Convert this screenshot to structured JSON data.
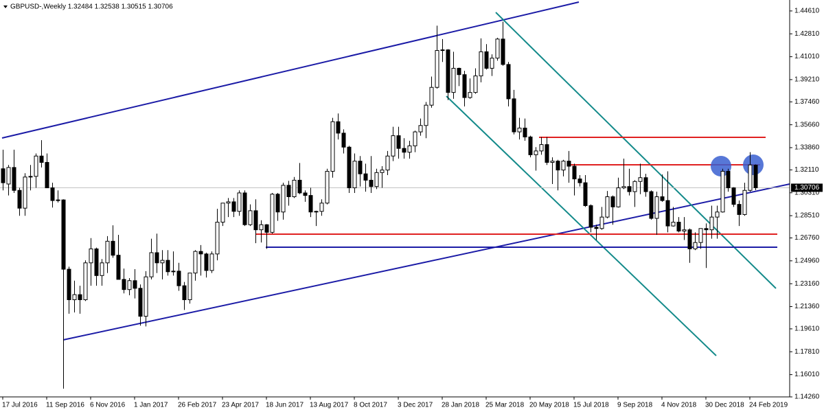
{
  "chart_data": {
    "type": "candlestick",
    "title": "GBPUSD-,Weekly  1.32484 1.32538 1.30515 1.30706",
    "up_color": "#ffffff",
    "down_color": "#000000",
    "edge_color": "#000000",
    "xlim": [
      -0.5,
      143.25
    ],
    "ylim": [
      1.1426,
      1.4547
    ],
    "current_price": {
      "value": 1.30706,
      "label": "1.30706"
    },
    "xticks": [
      {
        "value": 0,
        "label": "17 Jul 2016"
      },
      {
        "value": 8,
        "label": "11 Sep 2016"
      },
      {
        "value": 16,
        "label": "6 Nov 2016"
      },
      {
        "value": 24,
        "label": "1 Jan 2017"
      },
      {
        "value": 32,
        "label": "26 Feb 2017"
      },
      {
        "value": 40,
        "label": "23 Apr 2017"
      },
      {
        "value": 48,
        "label": "18 Jun 2017"
      },
      {
        "value": 56,
        "label": "13 Aug 2017"
      },
      {
        "value": 64,
        "label": "8 Oct 2017"
      },
      {
        "value": 72,
        "label": "3 Dec 2017"
      },
      {
        "value": 80,
        "label": "28 Jan 2018"
      },
      {
        "value": 88,
        "label": "25 Mar 2018"
      },
      {
        "value": 96,
        "label": "20 May 2018"
      },
      {
        "value": 104,
        "label": "15 Jul 2018"
      },
      {
        "value": 112,
        "label": "9 Sep 2018"
      },
      {
        "value": 120,
        "label": "4 Nov 2018"
      },
      {
        "value": 128,
        "label": "30 Dec 2018"
      },
      {
        "value": 136,
        "label": "24 Feb 2019"
      }
    ],
    "yticks": [
      {
        "value": 1.4461,
        "label": "1.44610"
      },
      {
        "value": 1.4281,
        "label": "1.42810"
      },
      {
        "value": 1.4101,
        "label": "1.41010"
      },
      {
        "value": 1.3921,
        "label": "1.39210"
      },
      {
        "value": 1.3746,
        "label": "1.37460"
      },
      {
        "value": 1.3566,
        "label": "1.35660"
      },
      {
        "value": 1.3386,
        "label": "1.33860"
      },
      {
        "value": 1.3211,
        "label": "1.32110"
      },
      {
        "value": 1.3031,
        "label": "1.30310"
      },
      {
        "value": 1.2851,
        "label": "1.28510"
      },
      {
        "value": 1.2676,
        "label": "1.26760"
      },
      {
        "value": 1.2496,
        "label": "1.24960"
      },
      {
        "value": 1.2316,
        "label": "1.23160"
      },
      {
        "value": 1.2136,
        "label": "1.21360"
      },
      {
        "value": 1.1961,
        "label": "1.19610"
      },
      {
        "value": 1.1781,
        "label": "1.17810"
      },
      {
        "value": 1.1601,
        "label": "1.16010"
      },
      {
        "value": 1.1426,
        "label": "1.14260"
      }
    ],
    "ohlc": [
      [
        1.322,
        1.337,
        1.305,
        1.311
      ],
      [
        1.31,
        1.325,
        1.301,
        1.323
      ],
      [
        1.323,
        1.337,
        1.303,
        1.305
      ],
      [
        1.305,
        1.307,
        1.285,
        1.291
      ],
      [
        1.291,
        1.3185,
        1.285,
        1.3155
      ],
      [
        1.3155,
        1.325,
        1.305,
        1.316
      ],
      [
        1.316,
        1.334,
        1.307,
        1.332
      ],
      [
        1.332,
        1.3445,
        1.323,
        1.327
      ],
      [
        1.327,
        1.334,
        1.309,
        1.307
      ],
      [
        1.307,
        1.311,
        1.2915,
        1.297
      ],
      [
        1.297,
        1.305,
        1.2955,
        1.2975
      ],
      [
        1.2975,
        1.298,
        1.1491,
        1.243
      ],
      [
        1.243,
        1.245,
        1.208,
        1.219
      ],
      [
        1.219,
        1.234,
        1.209,
        1.223
      ],
      [
        1.223,
        1.23,
        1.208,
        1.219
      ],
      [
        1.219,
        1.25,
        1.218,
        1.248
      ],
      [
        1.248,
        1.2675,
        1.23,
        1.259
      ],
      [
        1.259,
        1.26,
        1.23,
        1.238
      ],
      [
        1.238,
        1.251,
        1.23,
        1.248
      ],
      [
        1.248,
        1.269,
        1.24,
        1.265
      ],
      [
        1.265,
        1.2775,
        1.252,
        1.254
      ],
      [
        1.254,
        1.27,
        1.235,
        1.235
      ],
      [
        1.235,
        1.2435,
        1.224,
        1.227
      ],
      [
        1.227,
        1.236,
        1.2225,
        1.234
      ],
      [
        1.234,
        1.243,
        1.22,
        1.228
      ],
      [
        1.228,
        1.231,
        1.1986,
        1.206
      ],
      [
        1.206,
        1.2415,
        1.198,
        1.237
      ],
      [
        1.237,
        1.267,
        1.235,
        1.256
      ],
      [
        1.256,
        1.271,
        1.24,
        1.248
      ],
      [
        1.248,
        1.258,
        1.235,
        1.25
      ],
      [
        1.25,
        1.258,
        1.238,
        1.241
      ],
      [
        1.241,
        1.257,
        1.238,
        1.2415
      ],
      [
        1.2415,
        1.248,
        1.226,
        1.23
      ],
      [
        1.23,
        1.233,
        1.211,
        1.219
      ],
      [
        1.219,
        1.24,
        1.216,
        1.24
      ],
      [
        1.24,
        1.258,
        1.234,
        1.257
      ],
      [
        1.257,
        1.262,
        1.238,
        1.255
      ],
      [
        1.255,
        1.256,
        1.2365,
        1.242
      ],
      [
        1.242,
        1.257,
        1.24,
        1.255
      ],
      [
        1.255,
        1.2905,
        1.25,
        1.28
      ],
      [
        1.28,
        1.295,
        1.277,
        1.295
      ],
      [
        1.295,
        1.299,
        1.284,
        1.296
      ],
      [
        1.296,
        1.299,
        1.284,
        1.2885
      ],
      [
        1.2885,
        1.305,
        1.285,
        1.303
      ],
      [
        1.303,
        1.305,
        1.277,
        1.278
      ],
      [
        1.278,
        1.294,
        1.277,
        1.289
      ],
      [
        1.289,
        1.298,
        1.2635,
        1.274
      ],
      [
        1.274,
        1.2815,
        1.264,
        1.278
      ],
      [
        1.278,
        1.2785,
        1.259,
        1.272
      ],
      [
        1.272,
        1.303,
        1.271,
        1.302
      ],
      [
        1.302,
        1.303,
        1.281,
        1.288
      ],
      [
        1.288,
        1.311,
        1.282,
        1.309
      ],
      [
        1.309,
        1.3125,
        1.293,
        1.3
      ],
      [
        1.3,
        1.3155,
        1.299,
        1.313
      ],
      [
        1.313,
        1.3265,
        1.302,
        1.303
      ],
      [
        1.303,
        1.305,
        1.296,
        1.301
      ],
      [
        1.301,
        1.307,
        1.284,
        1.288
      ],
      [
        1.288,
        1.289,
        1.277,
        1.2885
      ],
      [
        1.2885,
        1.298,
        1.285,
        1.295
      ],
      [
        1.295,
        1.322,
        1.294,
        1.32
      ],
      [
        1.32,
        1.362,
        1.315,
        1.359
      ],
      [
        1.359,
        1.3655,
        1.345,
        1.35
      ],
      [
        1.35,
        1.353,
        1.334,
        1.339
      ],
      [
        1.339,
        1.34,
        1.303,
        1.307
      ],
      [
        1.307,
        1.334,
        1.303,
        1.328
      ],
      [
        1.328,
        1.332,
        1.308,
        1.318
      ],
      [
        1.318,
        1.326,
        1.304,
        1.313
      ],
      [
        1.313,
        1.332,
        1.303,
        1.308
      ],
      [
        1.308,
        1.322,
        1.306,
        1.319
      ],
      [
        1.319,
        1.324,
        1.307,
        1.321
      ],
      [
        1.321,
        1.336,
        1.317,
        1.332
      ],
      [
        1.332,
        1.355,
        1.328,
        1.348
      ],
      [
        1.348,
        1.355,
        1.33,
        1.338
      ],
      [
        1.338,
        1.346,
        1.33,
        1.335
      ],
      [
        1.335,
        1.344,
        1.33,
        1.34
      ],
      [
        1.34,
        1.352,
        1.335,
        1.351
      ],
      [
        1.351,
        1.3615,
        1.348,
        1.356
      ],
      [
        1.356,
        1.3745,
        1.346,
        1.372
      ],
      [
        1.372,
        1.3945,
        1.37,
        1.386
      ],
      [
        1.386,
        1.4345,
        1.385,
        1.415
      ],
      [
        1.415,
        1.424,
        1.406,
        1.4155
      ],
      [
        1.4155,
        1.416,
        1.376,
        1.382
      ],
      [
        1.382,
        1.414,
        1.377,
        1.401
      ],
      [
        1.401,
        1.4015,
        1.387,
        1.396
      ],
      [
        1.396,
        1.399,
        1.371,
        1.378
      ],
      [
        1.378,
        1.393,
        1.377,
        1.382
      ],
      [
        1.382,
        1.401,
        1.381,
        1.395
      ],
      [
        1.395,
        1.4245,
        1.39,
        1.414
      ],
      [
        1.414,
        1.42,
        1.4,
        1.401
      ],
      [
        1.401,
        1.412,
        1.395,
        1.409
      ],
      [
        1.409,
        1.425,
        1.407,
        1.424
      ],
      [
        1.424,
        1.4376,
        1.403,
        1.404
      ],
      [
        1.404,
        1.406,
        1.371,
        1.377
      ],
      [
        1.377,
        1.384,
        1.349,
        1.351
      ],
      [
        1.351,
        1.362,
        1.345,
        1.354
      ],
      [
        1.354,
        1.3615,
        1.344,
        1.347
      ],
      [
        1.347,
        1.348,
        1.331,
        1.333
      ],
      [
        1.333,
        1.339,
        1.3205,
        1.336
      ],
      [
        1.336,
        1.347,
        1.333,
        1.341
      ],
      [
        1.341,
        1.347,
        1.325,
        1.327
      ],
      [
        1.327,
        1.331,
        1.31,
        1.328
      ],
      [
        1.328,
        1.329,
        1.305,
        1.321
      ],
      [
        1.321,
        1.329,
        1.316,
        1.328
      ],
      [
        1.328,
        1.336,
        1.311,
        1.324
      ],
      [
        1.324,
        1.326,
        1.301,
        1.314
      ],
      [
        1.314,
        1.317,
        1.308,
        1.311
      ],
      [
        1.311,
        1.317,
        1.292,
        1.293
      ],
      [
        1.293,
        1.294,
        1.272,
        1.276
      ],
      [
        1.276,
        1.278,
        1.266,
        1.275
      ],
      [
        1.275,
        1.292,
        1.274,
        1.284
      ],
      [
        1.284,
        1.3045,
        1.283,
        1.3
      ],
      [
        1.3,
        1.301,
        1.278,
        1.292
      ],
      [
        1.292,
        1.315,
        1.2915,
        1.307
      ],
      [
        1.307,
        1.33,
        1.306,
        1.308
      ],
      [
        1.308,
        1.322,
        1.301,
        1.304
      ],
      [
        1.304,
        1.313,
        1.292,
        1.312
      ],
      [
        1.312,
        1.326,
        1.302,
        1.315
      ],
      [
        1.315,
        1.318,
        1.3,
        1.304
      ],
      [
        1.304,
        1.305,
        1.282,
        1.283
      ],
      [
        1.283,
        1.304,
        1.27,
        1.3
      ],
      [
        1.3,
        1.3175,
        1.296,
        1.297
      ],
      [
        1.297,
        1.32,
        1.272,
        1.277
      ],
      [
        1.277,
        1.292,
        1.2765,
        1.28
      ],
      [
        1.28,
        1.284,
        1.272,
        1.273
      ],
      [
        1.273,
        1.284,
        1.266,
        1.274
      ],
      [
        1.274,
        1.275,
        1.248,
        1.259
      ],
      [
        1.259,
        1.272,
        1.258,
        1.264
      ],
      [
        1.264,
        1.273,
        1.259,
        1.275
      ],
      [
        1.275,
        1.279,
        1.244,
        1.274
      ],
      [
        1.274,
        1.293,
        1.267,
        1.284
      ],
      [
        1.284,
        1.293,
        1.267,
        1.288
      ],
      [
        1.288,
        1.322,
        1.2875,
        1.32
      ],
      [
        1.32,
        1.322,
        1.304,
        1.307
      ],
      [
        1.307,
        1.3075,
        1.292,
        1.294
      ],
      [
        1.294,
        1.297,
        1.277,
        1.286
      ],
      [
        1.286,
        1.311,
        1.285,
        1.305
      ],
      [
        1.305,
        1.335,
        1.304,
        1.325
      ],
      [
        1.32484,
        1.32538,
        1.30515,
        1.30706
      ]
    ]
  }
}
